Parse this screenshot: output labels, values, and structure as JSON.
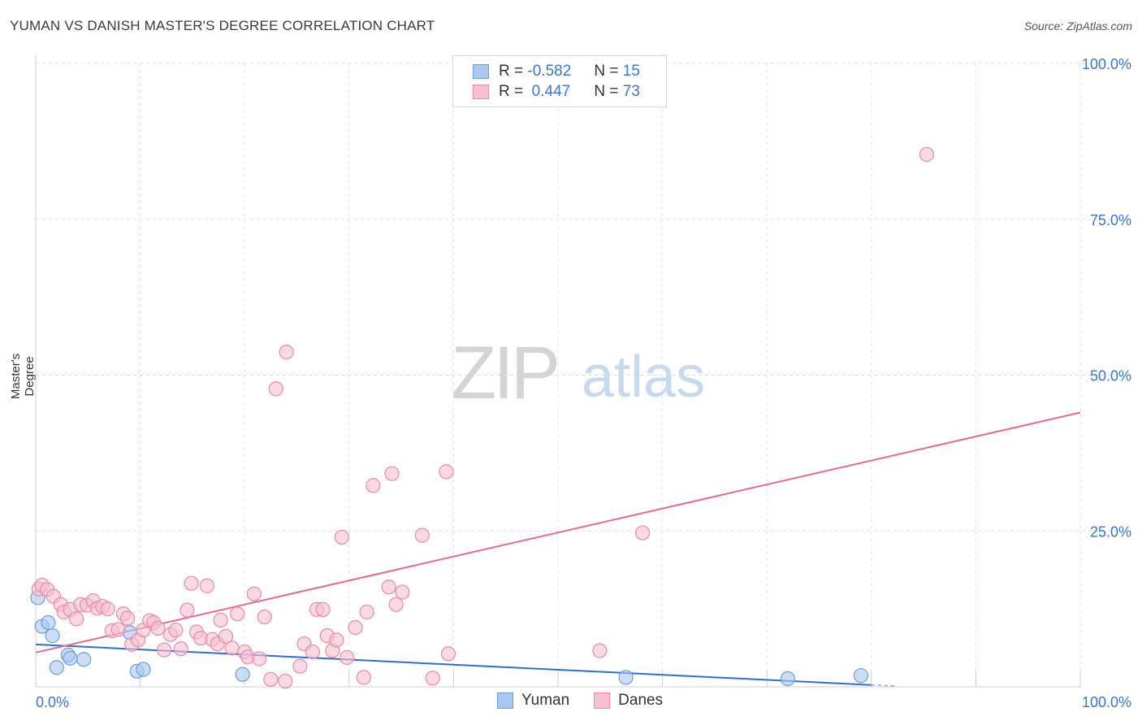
{
  "title": "YUMAN VS DANISH MASTER'S DEGREE CORRELATION CHART",
  "source": "Source: ZipAtlas.com",
  "watermark": {
    "zip": "ZIP",
    "atlas": "atlas"
  },
  "legend": {
    "rows": [
      {
        "r_label": "R =",
        "r_value": "-0.582",
        "n_label": "N =",
        "n_value": "15",
        "color": "#a8c8f0",
        "border": "#6a9fdc"
      },
      {
        "r_label": "R =",
        "r_value": " 0.447",
        "n_label": "N =",
        "n_value": "73",
        "color": "#f7bfd0",
        "border": "#e88aa8"
      }
    ]
  },
  "bottom_legend": [
    {
      "label": "Yuman",
      "color": "#a8c8f0",
      "border": "#6a9fdc"
    },
    {
      "label": "Danes",
      "color": "#f7bfd0",
      "border": "#e88aa8"
    }
  ],
  "chart_data": {
    "type": "scatter",
    "title": "YUMAN VS DANISH MASTER'S DEGREE CORRELATION CHART",
    "xlabel": "",
    "ylabel": "Master's Degree",
    "xlim": [
      0,
      100
    ],
    "ylim": [
      0,
      100
    ],
    "x_tick_labels": [
      "0.0%",
      "100.0%"
    ],
    "y_tick_labels": [
      "25.0%",
      "50.0%",
      "75.0%",
      "100.0%"
    ],
    "y_ticks": [
      25,
      50,
      75,
      100
    ],
    "grid": true,
    "series": [
      {
        "name": "Yuman",
        "color": "#a8c8f0",
        "stroke": "#6a9fdc",
        "trend_color": "#2f6fcb",
        "trend": {
          "x0": 0,
          "y0": 6.8,
          "x1": 80,
          "y1": 0.3
        },
        "points": [
          [
            0.2,
            14.3
          ],
          [
            0.6,
            9.7
          ],
          [
            1.2,
            10.3
          ],
          [
            1.6,
            8.2
          ],
          [
            2.0,
            3.1
          ],
          [
            3.1,
            5.1
          ],
          [
            3.3,
            4.6
          ],
          [
            4.6,
            4.4
          ],
          [
            9.0,
            8.7
          ],
          [
            9.7,
            2.5
          ],
          [
            10.3,
            2.8
          ],
          [
            19.8,
            2.0
          ],
          [
            56.5,
            1.5
          ],
          [
            72.0,
            1.3
          ],
          [
            79.0,
            1.8
          ]
        ]
      },
      {
        "name": "Danes",
        "color": "#f7bfd0",
        "stroke": "#e88aa8",
        "trend_color": "#e46a93",
        "trend": {
          "x0": 0,
          "y0": 5.5,
          "x1": 100,
          "y1": 44.0
        },
        "points": [
          [
            0.3,
            15.7
          ],
          [
            0.6,
            16.3
          ],
          [
            1.1,
            15.6
          ],
          [
            1.7,
            14.5
          ],
          [
            2.4,
            13.2
          ],
          [
            2.7,
            12.0
          ],
          [
            3.3,
            12.4
          ],
          [
            3.9,
            10.9
          ],
          [
            4.3,
            13.2
          ],
          [
            4.9,
            13.1
          ],
          [
            5.5,
            13.8
          ],
          [
            5.9,
            12.6
          ],
          [
            6.4,
            12.9
          ],
          [
            6.9,
            12.5
          ],
          [
            7.3,
            9.0
          ],
          [
            7.9,
            9.2
          ],
          [
            8.4,
            11.7
          ],
          [
            8.8,
            11.0
          ],
          [
            9.2,
            6.8
          ],
          [
            9.8,
            7.5
          ],
          [
            10.3,
            9.1
          ],
          [
            10.9,
            10.6
          ],
          [
            11.3,
            10.3
          ],
          [
            11.7,
            9.4
          ],
          [
            12.3,
            5.9
          ],
          [
            12.9,
            8.4
          ],
          [
            13.4,
            9.1
          ],
          [
            13.9,
            6.1
          ],
          [
            14.5,
            12.3
          ],
          [
            14.9,
            16.6
          ],
          [
            15.4,
            8.8
          ],
          [
            15.8,
            7.8
          ],
          [
            16.4,
            16.2
          ],
          [
            16.9,
            7.6
          ],
          [
            17.4,
            6.9
          ],
          [
            17.7,
            10.7
          ],
          [
            18.2,
            8.1
          ],
          [
            18.8,
            6.2
          ],
          [
            19.3,
            11.7
          ],
          [
            20.0,
            5.6
          ],
          [
            20.3,
            4.8
          ],
          [
            20.9,
            14.9
          ],
          [
            21.4,
            4.5
          ],
          [
            21.9,
            11.2
          ],
          [
            22.5,
            1.2
          ],
          [
            23.0,
            47.8
          ],
          [
            24.0,
            53.7
          ],
          [
            23.9,
            0.9
          ],
          [
            25.3,
            3.3
          ],
          [
            25.7,
            6.9
          ],
          [
            26.5,
            5.6
          ],
          [
            26.9,
            12.4
          ],
          [
            27.5,
            12.4
          ],
          [
            27.9,
            8.2
          ],
          [
            28.4,
            5.8
          ],
          [
            28.8,
            7.5
          ],
          [
            29.8,
            4.7
          ],
          [
            29.3,
            24.0
          ],
          [
            30.6,
            9.5
          ],
          [
            31.4,
            1.5
          ],
          [
            31.7,
            12.0
          ],
          [
            32.3,
            32.3
          ],
          [
            33.8,
            16.0
          ],
          [
            34.1,
            34.2
          ],
          [
            34.5,
            13.2
          ],
          [
            35.1,
            15.2
          ],
          [
            37.0,
            24.3
          ],
          [
            38.0,
            1.4
          ],
          [
            39.3,
            34.5
          ],
          [
            39.5,
            5.3
          ],
          [
            54.0,
            5.8
          ],
          [
            58.1,
            24.7
          ],
          [
            85.3,
            85.4
          ]
        ]
      }
    ]
  }
}
